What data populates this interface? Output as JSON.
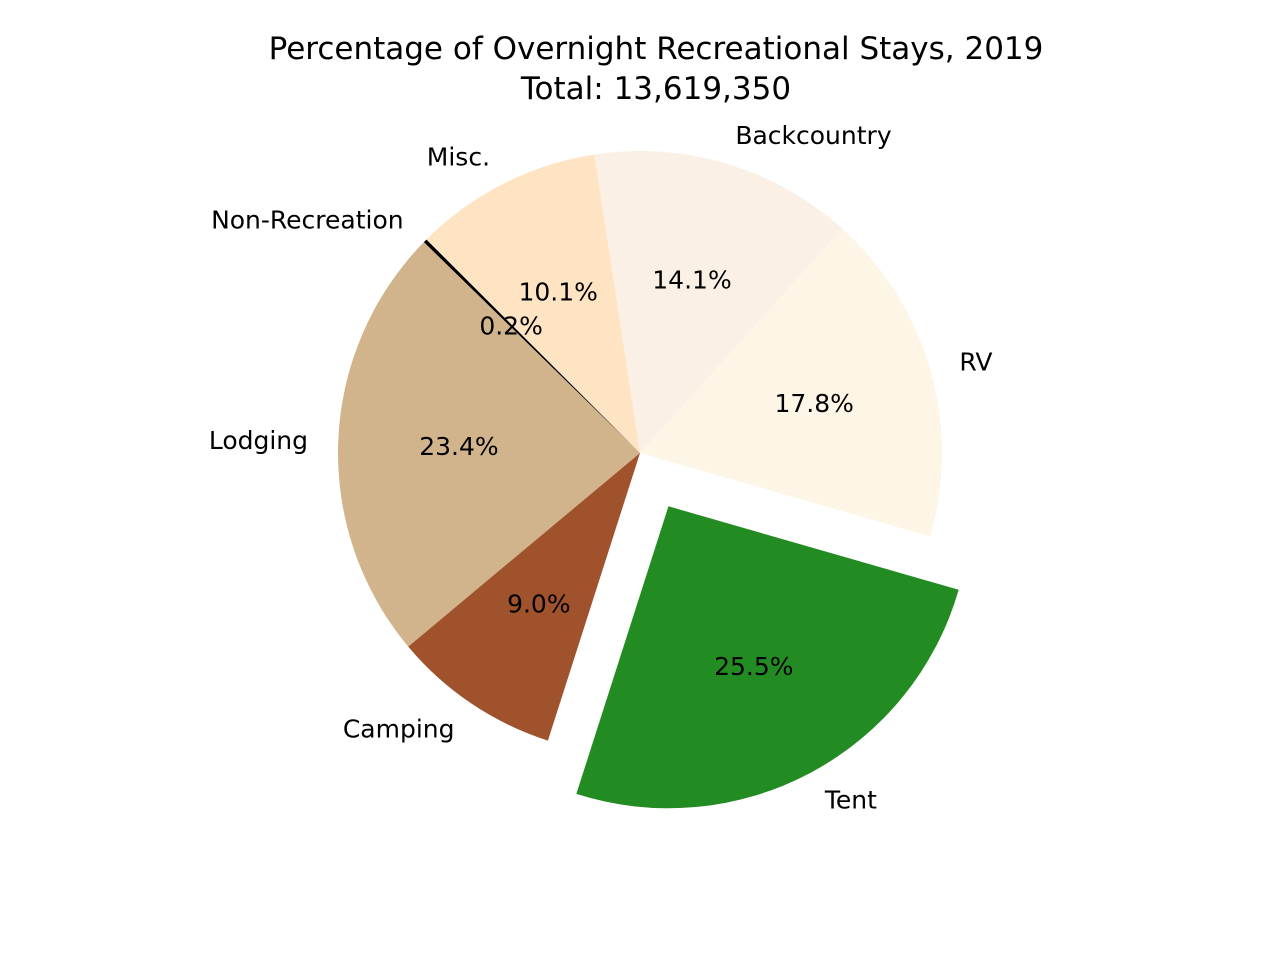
{
  "chart_data": {
    "type": "pie",
    "title": "Percentage of Overnight Recreational Stays, 2019",
    "subtitle": "Total: 13,619,350",
    "start_angle_deg": 135,
    "direction": "counterclockwise",
    "slices": [
      {
        "label": "Non-Recreation",
        "percent_label": "0.2%",
        "value": 0.2,
        "color": "#000000",
        "explode": 0
      },
      {
        "label": "Lodging",
        "percent_label": "23.4%",
        "value": 23.4,
        "color": "#d2b48c",
        "explode": 0
      },
      {
        "label": "Camping",
        "percent_label": "9.0%",
        "value": 9.0,
        "color": "#a0522d",
        "explode": 0
      },
      {
        "label": "Tent",
        "percent_label": "25.5%",
        "value": 25.5,
        "color": "#228b22",
        "explode": 0.2
      },
      {
        "label": "RV",
        "percent_label": "17.8%",
        "value": 17.8,
        "color": "#fdf5e6",
        "explode": 0
      },
      {
        "label": "Backcountry",
        "percent_label": "14.1%",
        "value": 14.1,
        "color": "#faf0e6",
        "explode": 0
      },
      {
        "label": "Misc.",
        "percent_label": "10.1%",
        "value": 10.1,
        "color": "#ffe4c4",
        "explode": 0
      }
    ]
  }
}
